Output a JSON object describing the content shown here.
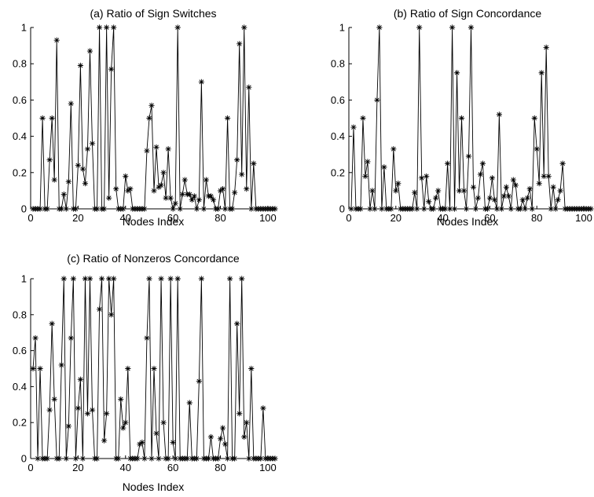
{
  "chart_data": [
    {
      "type": "line",
      "title": "(a) Ratio of Sign Switches",
      "xlabel": "Nodes Index",
      "ylabel": "",
      "xlim": [
        0,
        104
      ],
      "ylim": [
        0,
        1
      ],
      "xticks": [
        "0",
        "20",
        "40",
        "60",
        "80",
        "100"
      ],
      "yticks": [
        "0",
        "0.2",
        "0.4",
        "0.6",
        "0.8",
        "1"
      ],
      "marker": "asterisk",
      "x": [
        1,
        2,
        3,
        4,
        5,
        6,
        7,
        8,
        9,
        10,
        11,
        12,
        13,
        14,
        15,
        16,
        17,
        18,
        19,
        20,
        21,
        22,
        23,
        24,
        25,
        26,
        27,
        28,
        29,
        30,
        31,
        32,
        33,
        34,
        35,
        36,
        37,
        38,
        39,
        40,
        41,
        42,
        43,
        44,
        45,
        46,
        47,
        48,
        49,
        50,
        51,
        52,
        53,
        54,
        55,
        56,
        57,
        58,
        59,
        60,
        61,
        62,
        63,
        64,
        65,
        66,
        67,
        68,
        69,
        70,
        71,
        72,
        73,
        74,
        75,
        76,
        77,
        78,
        79,
        80,
        81,
        82,
        83,
        84,
        85,
        86,
        87,
        88,
        89,
        90,
        91,
        92,
        93,
        94,
        95,
        96,
        97,
        98,
        99,
        100,
        101,
        102,
        103
      ],
      "y": [
        0,
        0,
        0,
        0,
        0.5,
        0,
        0,
        0.27,
        0.5,
        0.16,
        0.93,
        0,
        0,
        0.08,
        0,
        0.15,
        0.58,
        0,
        0,
        0.24,
        0.79,
        0.22,
        0.14,
        0.33,
        0.87,
        0.36,
        0,
        0,
        1,
        0,
        0,
        1,
        0.06,
        0.77,
        1,
        0.11,
        0,
        0,
        0,
        0.18,
        0.1,
        0.11,
        0,
        0,
        0,
        0,
        0,
        0,
        0.32,
        0.5,
        0.57,
        0.1,
        0.34,
        0.12,
        0.13,
        0.2,
        0.06,
        0.33,
        0.06,
        0,
        0.03,
        1,
        0,
        0.08,
        0.16,
        0.08,
        0.08,
        0.05,
        0.07,
        0,
        0.05,
        0.7,
        0,
        0.16,
        0.07,
        0.07,
        0.05,
        0,
        0,
        0.1,
        0.11,
        0,
        0.5,
        0,
        0,
        0.09,
        0.27,
        0.91,
        0.19,
        1,
        0.11,
        0.67,
        0,
        0.25,
        0,
        0,
        0,
        0,
        0,
        0,
        0,
        0,
        0
      ]
    },
    {
      "type": "line",
      "title": "(b) Ratio of Sign Concordance",
      "xlabel": "Nodes Index",
      "ylabel": "",
      "xlim": [
        0,
        104
      ],
      "ylim": [
        0,
        1
      ],
      "xticks": [
        "0",
        "20",
        "40",
        "60",
        "80",
        "100"
      ],
      "yticks": [
        "0",
        "0.2",
        "0.4",
        "0.6",
        "0.8",
        "1"
      ],
      "marker": "asterisk",
      "x": [
        1,
        2,
        3,
        4,
        5,
        6,
        7,
        8,
        9,
        10,
        11,
        12,
        13,
        14,
        15,
        16,
        17,
        18,
        19,
        20,
        21,
        22,
        23,
        24,
        25,
        26,
        27,
        28,
        29,
        30,
        31,
        32,
        33,
        34,
        35,
        36,
        37,
        38,
        39,
        40,
        41,
        42,
        43,
        44,
        45,
        46,
        47,
        48,
        49,
        50,
        51,
        52,
        53,
        54,
        55,
        56,
        57,
        58,
        59,
        60,
        61,
        62,
        63,
        64,
        65,
        66,
        67,
        68,
        69,
        70,
        71,
        72,
        73,
        74,
        75,
        76,
        77,
        78,
        79,
        80,
        81,
        82,
        83,
        84,
        85,
        86,
        87,
        88,
        89,
        90,
        91,
        92,
        93,
        94,
        95,
        96,
        97,
        98,
        99,
        100,
        101,
        102,
        103
      ],
      "y": [
        0,
        0.45,
        0,
        0,
        0,
        0.5,
        0.18,
        0.26,
        0,
        0.1,
        0,
        0.6,
        1,
        0,
        0.23,
        0,
        0,
        0,
        0.33,
        0.1,
        0.14,
        0,
        0,
        0,
        0,
        0,
        0,
        0.09,
        0,
        1,
        0.17,
        0,
        0.18,
        0.04,
        0,
        0,
        0.06,
        0.1,
        0,
        0,
        0,
        0.25,
        0,
        1,
        0,
        0.75,
        0.1,
        0.5,
        0.1,
        0,
        0.29,
        1,
        0.12,
        0,
        0.06,
        0.19,
        0.25,
        0,
        0,
        0.06,
        0.17,
        0.05,
        0,
        0.52,
        0,
        0.07,
        0.12,
        0.07,
        0,
        0.16,
        0.13,
        0,
        0,
        0.05,
        0,
        0.06,
        0.11,
        0,
        0.5,
        0.33,
        0.14,
        0.75,
        0.18,
        0.89,
        0.18,
        0,
        0.12,
        0,
        0.05,
        0.1,
        0.25,
        0,
        0,
        0,
        0,
        0,
        0,
        0,
        0,
        0,
        0,
        0,
        0
      ]
    },
    {
      "type": "line",
      "title": "(c) Ratio of Nonzeros Concordance",
      "xlabel": "Nodes Index",
      "ylabel": "",
      "xlim": [
        0,
        104
      ],
      "ylim": [
        0,
        1
      ],
      "xticks": [
        "0",
        "20",
        "40",
        "60",
        "80",
        "100"
      ],
      "yticks": [
        "0",
        "0.2",
        "0.4",
        "0.6",
        "0.8",
        "1"
      ],
      "marker": "asterisk",
      "x": [
        1,
        2,
        3,
        4,
        5,
        6,
        7,
        8,
        9,
        10,
        11,
        12,
        13,
        14,
        15,
        16,
        17,
        18,
        19,
        20,
        21,
        22,
        23,
        24,
        25,
        26,
        27,
        28,
        29,
        30,
        31,
        32,
        33,
        34,
        35,
        36,
        37,
        38,
        39,
        40,
        41,
        42,
        43,
        44,
        45,
        46,
        47,
        48,
        49,
        50,
        51,
        52,
        53,
        54,
        55,
        56,
        57,
        58,
        59,
        60,
        61,
        62,
        63,
        64,
        65,
        66,
        67,
        68,
        69,
        70,
        71,
        72,
        73,
        74,
        75,
        76,
        77,
        78,
        79,
        80,
        81,
        82,
        83,
        84,
        85,
        86,
        87,
        88,
        89,
        90,
        91,
        92,
        93,
        94,
        95,
        96,
        97,
        98,
        99,
        100,
        101,
        102,
        103
      ],
      "y": [
        0.5,
        0.67,
        0,
        0.5,
        0,
        0,
        0,
        0.27,
        0.75,
        0.33,
        0,
        0,
        0.52,
        1,
        0,
        0.18,
        0.67,
        1,
        0,
        0.28,
        0.44,
        0,
        1,
        0.25,
        1,
        0.27,
        0,
        0,
        0.83,
        1,
        0.1,
        0.25,
        1,
        0.8,
        1,
        0,
        0,
        0.33,
        0.17,
        0.2,
        0.5,
        0,
        0,
        0,
        0,
        0.08,
        0.09,
        0,
        0.67,
        1,
        0,
        0.5,
        0.14,
        0,
        1,
        0.2,
        0,
        0,
        1,
        0.09,
        0,
        1,
        0,
        0,
        0,
        0,
        0.31,
        0,
        0,
        0,
        0.43,
        1,
        0,
        0,
        0,
        0.12,
        0,
        0,
        0,
        0.11,
        0.17,
        0.08,
        0,
        1,
        0,
        0,
        0.75,
        0.25,
        1,
        0.12,
        0.2,
        0,
        0.5,
        0,
        0,
        0,
        0,
        0.28,
        0,
        0,
        0,
        0,
        0
      ]
    }
  ]
}
